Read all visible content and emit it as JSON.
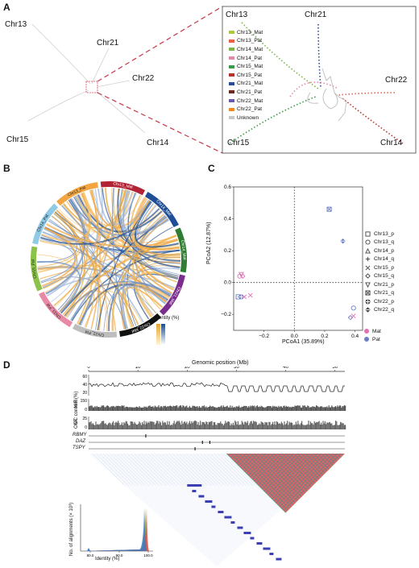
{
  "panels": {
    "a": "A",
    "b": "B",
    "c": "C",
    "d": "D"
  },
  "panel_a": {
    "left_labels": [
      "Chr13",
      "Chr21",
      "Chr22",
      "Chr15",
      "Chr14"
    ],
    "inset_labels": [
      "Chr13",
      "Chr21",
      "Chr22",
      "Chr15",
      "Chr14"
    ],
    "legend": [
      {
        "name": "Chr13_Mat",
        "color": "#a8c84a"
      },
      {
        "name": "Chr13_Pat",
        "color": "#e8604a"
      },
      {
        "name": "Chr14_Mat",
        "color": "#7ab648"
      },
      {
        "name": "Chr14_Pat",
        "color": "#e08aa8"
      },
      {
        "name": "Chr15_Mat",
        "color": "#3a9a4a"
      },
      {
        "name": "Chr15_Pat",
        "color": "#b8322c"
      },
      {
        "name": "Chr21_Mat",
        "color": "#2c4a9a"
      },
      {
        "name": "Chr21_Pat",
        "color": "#6a2a20"
      },
      {
        "name": "Chr22_Mat",
        "color": "#6a5aa8"
      },
      {
        "name": "Chr22_Pat",
        "color": "#f08a2a"
      },
      {
        "name": "Unknown",
        "color": "#c8c8c8"
      }
    ]
  },
  "panel_b": {
    "segments": [
      {
        "name": "Chr13_Pat",
        "color": "#f2a541"
      },
      {
        "name": "Chr13_Mat",
        "color": "#b22234"
      },
      {
        "name": "Chr14_Mat",
        "color": "#1f4e96"
      },
      {
        "name": "Chr14_Mat",
        "color": "#2e7d32"
      },
      {
        "name": "Chr21_Mat",
        "color": "#7b2d8e"
      },
      {
        "name": "Chr22_Mat",
        "color": "#111111"
      },
      {
        "name": "Chr22_Pat",
        "color": "#bdbdbd"
      },
      {
        "name": "Chr21_Pat",
        "color": "#e88aa6"
      },
      {
        "name": "Chr15_Pat",
        "color": "#8bc34a"
      },
      {
        "name": "Chr14_Pat",
        "color": "#8ecae6"
      }
    ],
    "colorbar_title": "Identity (%)"
  },
  "chart_data": {
    "type": "scatter",
    "xlabel": "PCoA1 (35.89%)",
    "ylabel": "PCoA2 (12.87%)",
    "xlim": [
      -0.4,
      0.45
    ],
    "ylim": [
      -0.3,
      0.6
    ],
    "xticks": [
      "−0.2",
      "0.0",
      "0.2",
      "0.4"
    ],
    "yticks": [
      "−0.2",
      "0.0",
      "0.2",
      "0.4",
      "0.6"
    ],
    "shape_legend": [
      "Chr13_p",
      "Chr13_q",
      "Chr14_p",
      "Chr14_q",
      "Chr15_p",
      "Chr15_q",
      "Chr21_p",
      "Chr21_q",
      "Chr22_p",
      "Chr22_q"
    ],
    "color_legend": [
      {
        "name": "Mat",
        "color": "#e36fb5"
      },
      {
        "name": "Pat",
        "color": "#6b7fc4"
      }
    ],
    "points": [
      {
        "x": 0.23,
        "y": 0.46,
        "shape": "Chr21_q",
        "group": "Pat"
      },
      {
        "x": 0.32,
        "y": 0.26,
        "shape": "Chr22_q",
        "group": "Pat"
      },
      {
        "x": -0.36,
        "y": 0.04,
        "shape": "Chr13_q",
        "group": "Mat"
      },
      {
        "x": -0.35,
        "y": 0.05,
        "shape": "Chr21_p",
        "group": "Mat"
      },
      {
        "x": -0.34,
        "y": 0.04,
        "shape": "Chr15_q",
        "group": "Mat"
      },
      {
        "x": -0.37,
        "y": -0.09,
        "shape": "Chr13_p",
        "group": "Pat"
      },
      {
        "x": -0.36,
        "y": -0.09,
        "shape": "Chr14_q",
        "group": "Pat"
      },
      {
        "x": -0.35,
        "y": -0.09,
        "shape": "Chr22_p",
        "group": "Pat"
      },
      {
        "x": -0.33,
        "y": -0.09,
        "shape": "Chr15_p",
        "group": "Mat"
      },
      {
        "x": -0.29,
        "y": -0.08,
        "shape": "Chr15_p",
        "group": "Mat"
      },
      {
        "x": 0.39,
        "y": -0.16,
        "shape": "Chr13_q",
        "group": "Pat"
      },
      {
        "x": 0.37,
        "y": -0.22,
        "shape": "Chr15_q",
        "group": "Pat"
      },
      {
        "x": 0.39,
        "y": -0.21,
        "shape": "Chr15_p",
        "group": "Mat"
      }
    ]
  },
  "panel_d": {
    "title": "Genomic position (Mb)",
    "xticks": [
      "0",
      "10",
      "20",
      "30",
      "40",
      "50"
    ],
    "tracks": [
      {
        "label": "GC content (%)",
        "ticks": [
          "60",
          "40",
          "20"
        ]
      },
      {
        "label": "HiFi",
        "ticks": [
          "150",
          "0"
        ]
      },
      {
        "label": "ONT",
        "ticks": [
          "25",
          "0"
        ]
      }
    ],
    "genes": [
      "RBMY",
      "DAZ",
      "TSPY"
    ],
    "hist_ylabel": "No. of alignments (× 10³)",
    "hist_xlabel": "Identity (%)",
    "hist_xticks": [
      "80.0",
      "90.0",
      "100.0"
    ]
  }
}
